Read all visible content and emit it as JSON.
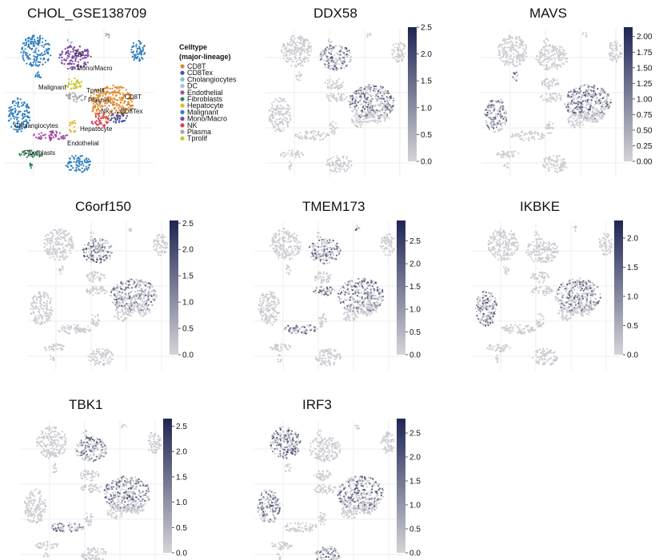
{
  "figure": {
    "legend_title_line1": "Celltype",
    "legend_title_line2": "(major-lineage)"
  },
  "colors": {
    "CD8T": "#e0892e",
    "CD8Tex": "#4a55a6",
    "Cholangiocytes": "#7fc3c2",
    "DC": "#a6bfe0",
    "Endothelial": "#a64aa0",
    "Fibroblasts": "#2f8a55",
    "Hepatocyte": "#e0b830",
    "Malignant": "#2f7fbf",
    "Mono/Macro": "#7a4aa6",
    "NK": "#d7425a",
    "Plasma": "#a7a7a7",
    "Tprolif": "#c9c430",
    "feature_low": "#d4d4d8",
    "feature_high": "#1f2554"
  },
  "chart_data": [
    {
      "type": "scatter",
      "title": "CHOL_GSE138709",
      "legend_title": "Celltype (major-lineage)",
      "legend": [
        "CD8T",
        "CD8Tex",
        "Cholangiocytes",
        "DC",
        "Endothelial",
        "Fibroblasts",
        "Hepatocyte",
        "Malignant",
        "Mono/Macro",
        "NK",
        "Plasma",
        "Tprolif"
      ],
      "cluster_labels": [
        "DC",
        "Mono/Macro",
        "Malignant",
        "Tprolif",
        "Plasma",
        "CD8T",
        "NK",
        "CD8Tex",
        "Cholangiocytes",
        "Hepatocyte",
        "Endothelial",
        "Fibroblasts"
      ]
    },
    {
      "type": "scatter",
      "title": "DDX58",
      "colorbar_ticks": [
        "2.5",
        "2.0",
        "1.5",
        "1.0",
        "0.5",
        "0.0"
      ],
      "colorbar_max": 2.5
    },
    {
      "type": "scatter",
      "title": "MAVS",
      "colorbar_ticks": [
        "2.00",
        "1.75",
        "1.50",
        "1.25",
        "1.00",
        "0.75",
        "0.50",
        "0.25",
        "0.00"
      ],
      "colorbar_max": 2.15
    },
    {
      "type": "scatter",
      "title": "C6orf150",
      "colorbar_ticks": [
        "2.5",
        "2.0",
        "1.5",
        "1.0",
        "0.5",
        "0.0"
      ],
      "colorbar_max": 2.55
    },
    {
      "type": "scatter",
      "title": "TMEM173",
      "colorbar_ticks": [
        "2.5",
        "2.0",
        "1.5",
        "1.0",
        "0.5",
        "0.0"
      ],
      "colorbar_max": 2.95
    },
    {
      "type": "scatter",
      "title": "IKBKE",
      "colorbar_ticks": [
        "2.0",
        "1.5",
        "1.0",
        "0.5",
        "0.0"
      ],
      "colorbar_max": 2.3
    },
    {
      "type": "scatter",
      "title": "TBK1",
      "colorbar_ticks": [
        "2.5",
        "2.0",
        "1.5",
        "1.0",
        "0.5",
        "0.0"
      ],
      "colorbar_max": 2.65
    },
    {
      "type": "scatter",
      "title": "IRF3",
      "colorbar_ticks": [
        "2.5",
        "2.0",
        "1.5",
        "1.0",
        "0.5",
        "0.0"
      ],
      "colorbar_max": 2.8
    }
  ]
}
